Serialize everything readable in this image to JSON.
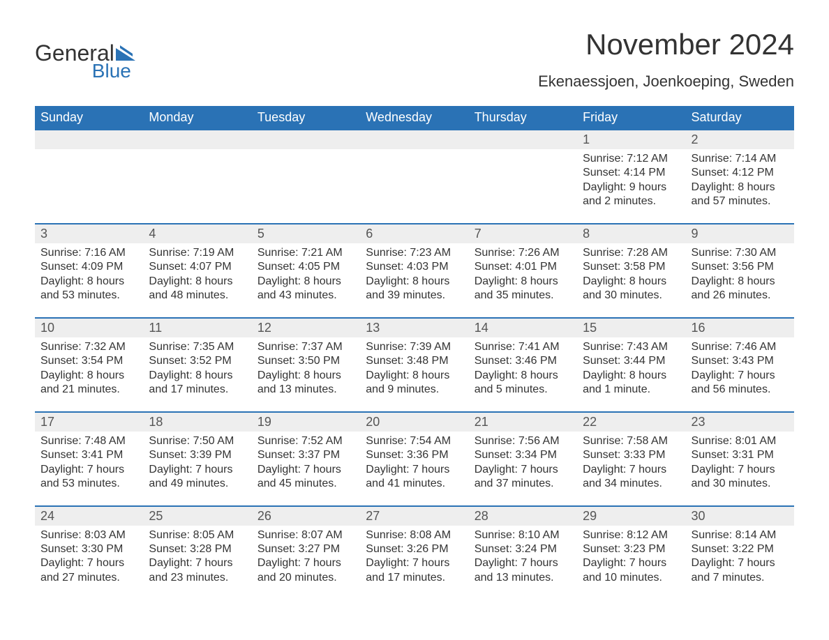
{
  "logo": {
    "text1": "General",
    "text2": "Blue"
  },
  "title": "November 2024",
  "location": "Ekenaessjoen, Joenkoeping, Sweden",
  "colors": {
    "header_bg": "#2a72b5",
    "header_text": "#ffffff",
    "row_border": "#2a72b5",
    "daynum_bg": "#eeeeee",
    "body_text": "#333333",
    "logo_blue": "#2a72b5"
  },
  "typography": {
    "title_fontsize": 42,
    "location_fontsize": 22,
    "dayheader_fontsize": 18,
    "daynum_fontsize": 18,
    "cell_fontsize": 16
  },
  "day_headers": [
    "Sunday",
    "Monday",
    "Tuesday",
    "Wednesday",
    "Thursday",
    "Friday",
    "Saturday"
  ],
  "weeks": [
    [
      null,
      null,
      null,
      null,
      null,
      {
        "n": "1",
        "sr": "Sunrise: 7:12 AM",
        "ss": "Sunset: 4:14 PM",
        "dl": "Daylight: 9 hours and 2 minutes."
      },
      {
        "n": "2",
        "sr": "Sunrise: 7:14 AM",
        "ss": "Sunset: 4:12 PM",
        "dl": "Daylight: 8 hours and 57 minutes."
      }
    ],
    [
      {
        "n": "3",
        "sr": "Sunrise: 7:16 AM",
        "ss": "Sunset: 4:09 PM",
        "dl": "Daylight: 8 hours and 53 minutes."
      },
      {
        "n": "4",
        "sr": "Sunrise: 7:19 AM",
        "ss": "Sunset: 4:07 PM",
        "dl": "Daylight: 8 hours and 48 minutes."
      },
      {
        "n": "5",
        "sr": "Sunrise: 7:21 AM",
        "ss": "Sunset: 4:05 PM",
        "dl": "Daylight: 8 hours and 43 minutes."
      },
      {
        "n": "6",
        "sr": "Sunrise: 7:23 AM",
        "ss": "Sunset: 4:03 PM",
        "dl": "Daylight: 8 hours and 39 minutes."
      },
      {
        "n": "7",
        "sr": "Sunrise: 7:26 AM",
        "ss": "Sunset: 4:01 PM",
        "dl": "Daylight: 8 hours and 35 minutes."
      },
      {
        "n": "8",
        "sr": "Sunrise: 7:28 AM",
        "ss": "Sunset: 3:58 PM",
        "dl": "Daylight: 8 hours and 30 minutes."
      },
      {
        "n": "9",
        "sr": "Sunrise: 7:30 AM",
        "ss": "Sunset: 3:56 PM",
        "dl": "Daylight: 8 hours and 26 minutes."
      }
    ],
    [
      {
        "n": "10",
        "sr": "Sunrise: 7:32 AM",
        "ss": "Sunset: 3:54 PM",
        "dl": "Daylight: 8 hours and 21 minutes."
      },
      {
        "n": "11",
        "sr": "Sunrise: 7:35 AM",
        "ss": "Sunset: 3:52 PM",
        "dl": "Daylight: 8 hours and 17 minutes."
      },
      {
        "n": "12",
        "sr": "Sunrise: 7:37 AM",
        "ss": "Sunset: 3:50 PM",
        "dl": "Daylight: 8 hours and 13 minutes."
      },
      {
        "n": "13",
        "sr": "Sunrise: 7:39 AM",
        "ss": "Sunset: 3:48 PM",
        "dl": "Daylight: 8 hours and 9 minutes."
      },
      {
        "n": "14",
        "sr": "Sunrise: 7:41 AM",
        "ss": "Sunset: 3:46 PM",
        "dl": "Daylight: 8 hours and 5 minutes."
      },
      {
        "n": "15",
        "sr": "Sunrise: 7:43 AM",
        "ss": "Sunset: 3:44 PM",
        "dl": "Daylight: 8 hours and 1 minute."
      },
      {
        "n": "16",
        "sr": "Sunrise: 7:46 AM",
        "ss": "Sunset: 3:43 PM",
        "dl": "Daylight: 7 hours and 56 minutes."
      }
    ],
    [
      {
        "n": "17",
        "sr": "Sunrise: 7:48 AM",
        "ss": "Sunset: 3:41 PM",
        "dl": "Daylight: 7 hours and 53 minutes."
      },
      {
        "n": "18",
        "sr": "Sunrise: 7:50 AM",
        "ss": "Sunset: 3:39 PM",
        "dl": "Daylight: 7 hours and 49 minutes."
      },
      {
        "n": "19",
        "sr": "Sunrise: 7:52 AM",
        "ss": "Sunset: 3:37 PM",
        "dl": "Daylight: 7 hours and 45 minutes."
      },
      {
        "n": "20",
        "sr": "Sunrise: 7:54 AM",
        "ss": "Sunset: 3:36 PM",
        "dl": "Daylight: 7 hours and 41 minutes."
      },
      {
        "n": "21",
        "sr": "Sunrise: 7:56 AM",
        "ss": "Sunset: 3:34 PM",
        "dl": "Daylight: 7 hours and 37 minutes."
      },
      {
        "n": "22",
        "sr": "Sunrise: 7:58 AM",
        "ss": "Sunset: 3:33 PM",
        "dl": "Daylight: 7 hours and 34 minutes."
      },
      {
        "n": "23",
        "sr": "Sunrise: 8:01 AM",
        "ss": "Sunset: 3:31 PM",
        "dl": "Daylight: 7 hours and 30 minutes."
      }
    ],
    [
      {
        "n": "24",
        "sr": "Sunrise: 8:03 AM",
        "ss": "Sunset: 3:30 PM",
        "dl": "Daylight: 7 hours and 27 minutes."
      },
      {
        "n": "25",
        "sr": "Sunrise: 8:05 AM",
        "ss": "Sunset: 3:28 PM",
        "dl": "Daylight: 7 hours and 23 minutes."
      },
      {
        "n": "26",
        "sr": "Sunrise: 8:07 AM",
        "ss": "Sunset: 3:27 PM",
        "dl": "Daylight: 7 hours and 20 minutes."
      },
      {
        "n": "27",
        "sr": "Sunrise: 8:08 AM",
        "ss": "Sunset: 3:26 PM",
        "dl": "Daylight: 7 hours and 17 minutes."
      },
      {
        "n": "28",
        "sr": "Sunrise: 8:10 AM",
        "ss": "Sunset: 3:24 PM",
        "dl": "Daylight: 7 hours and 13 minutes."
      },
      {
        "n": "29",
        "sr": "Sunrise: 8:12 AM",
        "ss": "Sunset: 3:23 PM",
        "dl": "Daylight: 7 hours and 10 minutes."
      },
      {
        "n": "30",
        "sr": "Sunrise: 8:14 AM",
        "ss": "Sunset: 3:22 PM",
        "dl": "Daylight: 7 hours and 7 minutes."
      }
    ]
  ]
}
